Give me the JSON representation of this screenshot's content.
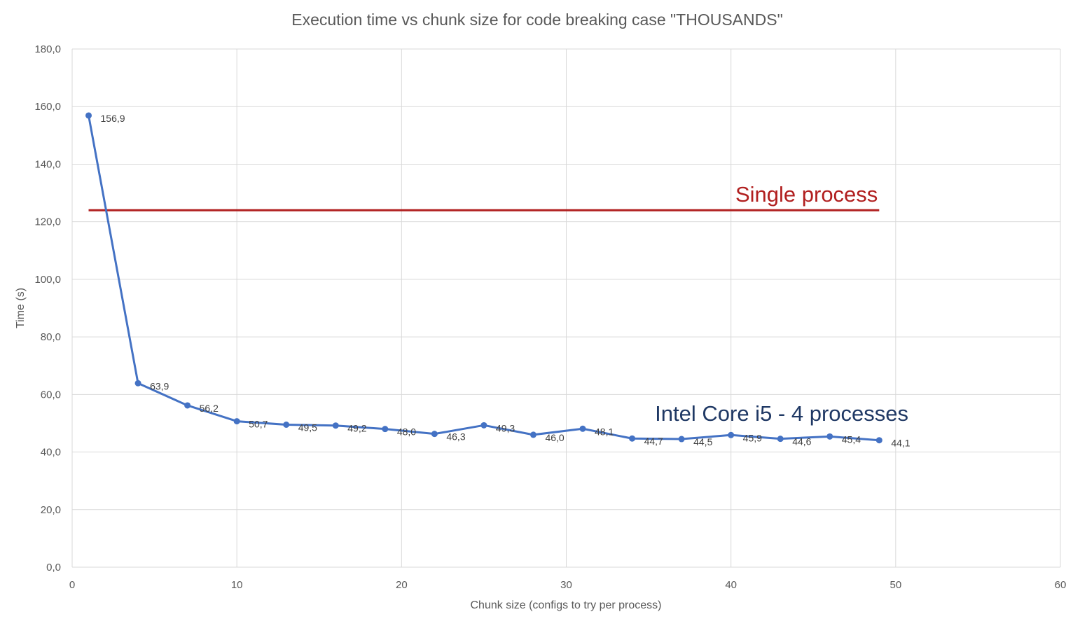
{
  "chart_data": {
    "type": "line",
    "title": "Execution time vs chunk size for code breaking case \"THOUSANDS\"",
    "xlabel": "Chunk size (configs to try per process)",
    "ylabel": "Time (s)",
    "xlim": [
      0,
      60
    ],
    "ylim": [
      0,
      180
    ],
    "x_ticks": [
      "0",
      "10",
      "20",
      "30",
      "40",
      "50",
      "60"
    ],
    "y_ticks": [
      "0,0",
      "20,0",
      "40,0",
      "60,0",
      "80,0",
      "100,0",
      "120,0",
      "140,0",
      "160,0",
      "180,0"
    ],
    "grid": true,
    "series": [
      {
        "name": "Intel Core i5 - 4 processes",
        "color": "#4472c4",
        "x": [
          1,
          4,
          7,
          10,
          13,
          16,
          19,
          22,
          25,
          28,
          31,
          34,
          37,
          40,
          43,
          46,
          49
        ],
        "values": [
          156.9,
          63.9,
          56.2,
          50.7,
          49.5,
          49.2,
          48.0,
          46.3,
          49.3,
          46.0,
          48.1,
          44.7,
          44.5,
          45.9,
          44.6,
          45.4,
          44.1
        ],
        "labels": [
          "156,9",
          "63,9",
          "56,2",
          "50,7",
          "49,5",
          "49,2",
          "48,0",
          "46,3",
          "49,3",
          "46,0",
          "48,1",
          "44,7",
          "44,5",
          "45,9",
          "44,6",
          "45,4",
          "44,1"
        ]
      }
    ],
    "reference_line": {
      "label": "Single process",
      "color": "#b11f1f",
      "y": 124,
      "x_range": [
        1,
        49
      ]
    }
  }
}
